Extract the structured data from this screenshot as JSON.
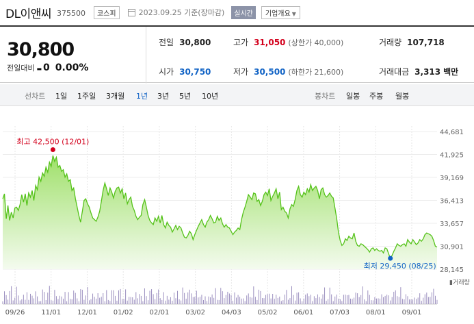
{
  "header": {
    "name": "DL이앤씨",
    "code": "375500",
    "market": "코스피",
    "date": "2023.09.25 기준(장마감)",
    "realtime": "실시간",
    "company_info": "기업개요"
  },
  "summary": {
    "price": "30,800",
    "change_label": "전일대비",
    "change_arrow": "▬",
    "change_value": "0",
    "change_pct": "0.00%",
    "prev_label": "전일",
    "prev_value": "30,800",
    "high_label": "고가",
    "high_value": "31,050",
    "high_limit": "(상한가 40,000)",
    "volume_label": "거래량",
    "volume_value": "107,718",
    "open_label": "시가",
    "open_value": "30,750",
    "low_label": "저가",
    "low_value": "30,500",
    "low_limit": "(하한가 21,600)",
    "amount_label": "거래대금",
    "amount_value": "3,313",
    "amount_unit": "백만"
  },
  "tabs": {
    "line_label": "선차트",
    "line_items": [
      "1일",
      "1주일",
      "3개월",
      "1년",
      "3년",
      "5년",
      "10년"
    ],
    "active": "1년",
    "candle_label": "봉차트",
    "candle_items": [
      "일봉",
      "주봉",
      "월봉"
    ]
  },
  "colors": {
    "line": "#55c21a",
    "fill_top": "#9fe06a",
    "fill_bottom": "#f4fbef",
    "high": "#d3001c",
    "low": "#1163c5",
    "volume": "#9b8fbf"
  },
  "chart_data": {
    "type": "area",
    "ylim": [
      28145,
      44681
    ],
    "y_ticks": [
      "44,681",
      "41,925",
      "39,169",
      "36,413",
      "33,657",
      "30,901",
      "28,145"
    ],
    "x_ticks": [
      "09/26",
      "11/01",
      "12/01",
      "01/02",
      "02/01",
      "03/02",
      "04/03",
      "05/02",
      "06/01",
      "07/03",
      "08/01",
      "09/01"
    ],
    "volume_label": "거래량",
    "high_label": "최고 42,500 (12/01)",
    "low_label": "최저 29,450 (08/25)",
    "high": 42500,
    "low": 29450,
    "series": [
      {
        "values": [
          36600,
          37200,
          34200,
          35800,
          34000,
          35000,
          34300,
          35500,
          35600,
          35200,
          35900,
          37100,
          36200,
          37200,
          35800,
          37300,
          36800,
          37600,
          36400,
          38200,
          37700,
          39200,
          38700,
          39700,
          39300,
          40400,
          39800,
          41000,
          40500,
          41800,
          41100,
          41600,
          40400,
          40600,
          39900,
          40100,
          39200,
          39600,
          38700,
          38900,
          37600,
          37900,
          36600,
          35600,
          34600,
          33800,
          35100,
          36400,
          36600,
          36000,
          35600,
          34900,
          34300,
          34100,
          33900,
          34400,
          35100,
          36300,
          37600,
          38500,
          37800,
          37000,
          37900,
          37400,
          36700,
          37500,
          37900,
          38000,
          37300,
          37800,
          36600,
          37300,
          36000,
          36500,
          36800,
          35700,
          35200,
          34500,
          34100,
          34400,
          34600,
          35900,
          36500,
          35600,
          34600,
          34000,
          33700,
          33500,
          34300,
          33900,
          34500,
          33700,
          34600,
          33500,
          33100,
          33800,
          33400,
          33200,
          32600,
          33000,
          33400,
          32900,
          33300,
          33100,
          32500,
          32000,
          31900,
          32200,
          32700,
          32400,
          31700,
          32300,
          32800,
          33300,
          33700,
          34100,
          33500,
          33200,
          33800,
          34100,
          34600,
          34200,
          33700,
          33800,
          34500,
          34000,
          34300,
          33600,
          33200,
          33500,
          33200,
          33100,
          32700,
          32300,
          32600,
          32800,
          33100,
          32900,
          34100,
          35000,
          35600,
          36300,
          37100,
          36800,
          36500,
          37300,
          37200,
          36300,
          36500,
          35800,
          36300,
          37100,
          37400,
          37000,
          37800,
          36400,
          36900,
          37300,
          37800,
          36600,
          37400,
          35300,
          35600,
          35100,
          34900,
          34300,
          35400,
          35900,
          35700,
          36500,
          37600,
          38100,
          37100,
          36800,
          37400,
          37100,
          37800,
          37400,
          38300,
          37600,
          37900,
          38100,
          37600,
          36600,
          37700,
          37900,
          37100,
          36800,
          37000,
          37300,
          36900,
          36700,
          35500,
          34200,
          32600,
          31600,
          31000,
          31200,
          31800,
          31600,
          32100,
          31900,
          31800,
          32500,
          31500,
          31000,
          30900,
          31200,
          31100,
          30900,
          30700,
          30500,
          30200,
          30600,
          30700,
          30400,
          30600,
          30400,
          30300,
          30400,
          30100,
          30700,
          30600,
          30000,
          29450,
          29800,
          30300,
          30700,
          31200,
          31000,
          30900,
          31100,
          31200,
          30900,
          31700,
          31400,
          31200,
          31700,
          31400,
          31100,
          31300,
          31700,
          31500,
          31800,
          32300,
          32500,
          32400,
          32300,
          32100,
          31600,
          30900,
          30800
        ]
      }
    ]
  }
}
